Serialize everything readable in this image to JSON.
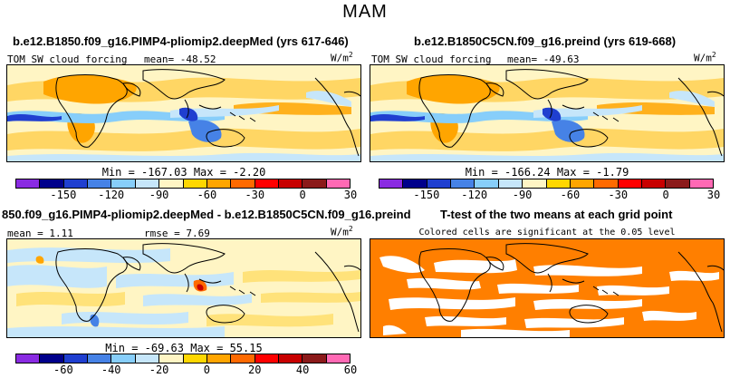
{
  "season": "MAM",
  "panels": {
    "top_left": {
      "title": "b.e12.B1850.f09_g16.PIMP4-pliomip2.deepMed (yrs 617-646)",
      "field_label": "TOM SW cloud forcing",
      "mean_label": "mean= -48.52",
      "units": "W/m",
      "units_exp": "2",
      "min_max": "Min = -167.03 Max =  -2.20"
    },
    "top_right": {
      "title": "b.e12.B1850C5CN.f09_g16.preind (yrs 619-668)",
      "field_label": "TOM SW cloud forcing",
      "mean_label": "mean= -49.63",
      "units": "W/m",
      "units_exp": "2",
      "min_max": "Min = -166.24 Max =  -1.79"
    },
    "bottom_left": {
      "title": "850.f09_g16.PIMP4-pliomip2.deepMed - b.e12.B1850C5CN.f09_g16.preind",
      "mean_label": "mean =  1.11",
      "rmse_label": "rmse =  7.69",
      "units": "W/m",
      "units_exp": "2",
      "min_max": "Min = -69.63 Max =  55.15"
    },
    "bottom_right": {
      "title": "T-test of the two means at each grid point",
      "subtitle": "Colored cells are significant at the 0.05 level"
    }
  },
  "colorbars": {
    "abs": {
      "colors": [
        "#8a2be2",
        "#00008b",
        "#1f3fd0",
        "#4682e6",
        "#87cefa",
        "#c6e6fa",
        "#fff5c4",
        "#ffd700",
        "#ffa500",
        "#ff6a00",
        "#ff0000",
        "#c80000",
        "#8b1a1a",
        "#ff69b4"
      ],
      "ticks": [
        "-150",
        "-120",
        "-90",
        "-60",
        "-30",
        "0",
        "30"
      ]
    },
    "diff": {
      "colors": [
        "#8a2be2",
        "#00008b",
        "#1f3fd0",
        "#4682e6",
        "#87cefa",
        "#c6e6fa",
        "#fff5c4",
        "#ffd700",
        "#ffa500",
        "#ff6a00",
        "#ff0000",
        "#c80000",
        "#8b1a1a",
        "#ff69b4"
      ],
      "ticks": [
        "-60",
        "-40",
        "-20",
        "0",
        "20",
        "40",
        "60"
      ]
    }
  },
  "colors": {
    "land_line": "#000000",
    "significant": "#ff7f00",
    "field_pale": "#fff5c4"
  }
}
